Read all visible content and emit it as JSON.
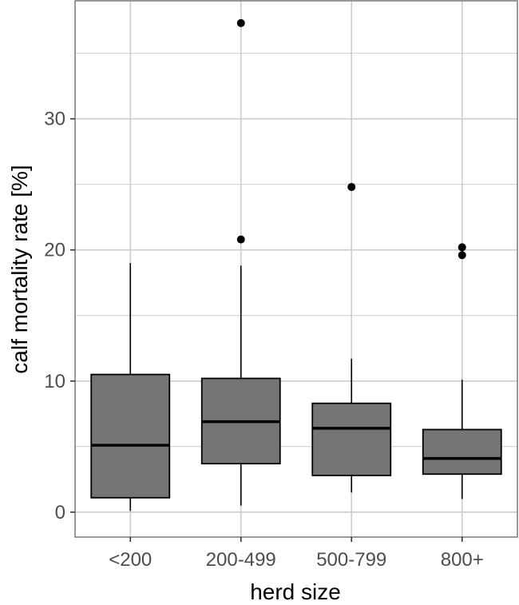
{
  "chart_data": {
    "type": "boxplot",
    "title": "",
    "xlabel": "herd size",
    "ylabel": "calf mortality rate [%]",
    "categories": [
      "<200",
      "200-499",
      "500-799",
      "800+"
    ],
    "y_ticks": [
      0,
      10,
      20,
      30
    ],
    "y_tick_labels": [
      "0",
      "10",
      "20",
      "30"
    ],
    "ylim": [
      -1.9,
      39
    ],
    "grid": true,
    "legend": "none",
    "boxes": [
      {
        "category": "<200",
        "whisker_low": 0.1,
        "q1": 1.1,
        "median": 5.1,
        "q3": 10.5,
        "whisker_high": 19.0,
        "outliers": []
      },
      {
        "category": "200-499",
        "whisker_low": 0.5,
        "q1": 3.7,
        "median": 6.9,
        "q3": 10.2,
        "whisker_high": 18.8,
        "outliers": [
          20.8,
          37.3
        ]
      },
      {
        "category": "500-799",
        "whisker_low": 1.5,
        "q1": 2.8,
        "median": 6.4,
        "q3": 8.3,
        "whisker_high": 11.7,
        "outliers": [
          24.8
        ]
      },
      {
        "category": "800+",
        "whisker_low": 1.0,
        "q1": 2.9,
        "median": 4.1,
        "q3": 6.3,
        "whisker_high": 10.1,
        "outliers": [
          19.6,
          20.2
        ]
      }
    ],
    "colors": {
      "box_fill": "#757575",
      "box_stroke": "#000000",
      "grid": "#cccccc",
      "panel_border": "#7f7f7f",
      "outlier": "#000000"
    }
  }
}
